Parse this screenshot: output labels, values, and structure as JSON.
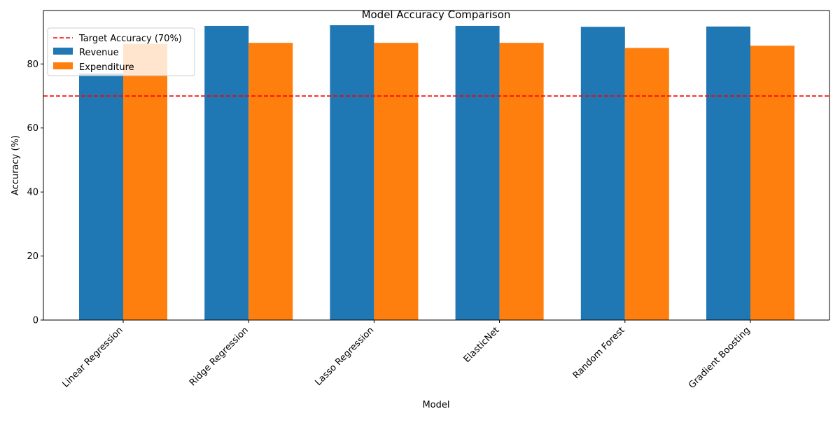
{
  "chart_data": {
    "type": "bar",
    "title": "Model Accuracy Comparison",
    "xlabel": "Model",
    "ylabel": "Accuracy (%)",
    "categories": [
      "Linear Regression",
      "Ridge Regression",
      "Lasso Regression",
      "ElasticNet",
      "Random Forest",
      "Gradient Boosting"
    ],
    "series": [
      {
        "name": "Revenue",
        "color": "#1f77b4",
        "values": [
          77.0,
          91.9,
          92.1,
          91.9,
          91.6,
          91.7
        ]
      },
      {
        "name": "Expenditure",
        "color": "#ff7f0e",
        "values": [
          86.3,
          86.6,
          86.6,
          86.6,
          85.0,
          85.7
        ]
      }
    ],
    "reference_line": {
      "label": "Target Accuracy (70%)",
      "value": 70,
      "color": "#ff0000",
      "style": "dashed"
    },
    "ylim": [
      0,
      96.7
    ],
    "yticks": [
      0,
      20,
      40,
      60,
      80
    ],
    "ytick_labels": [
      "0",
      "20",
      "40",
      "60",
      "80"
    ],
    "legend": {
      "position": "top-left"
    },
    "grid": false
  }
}
